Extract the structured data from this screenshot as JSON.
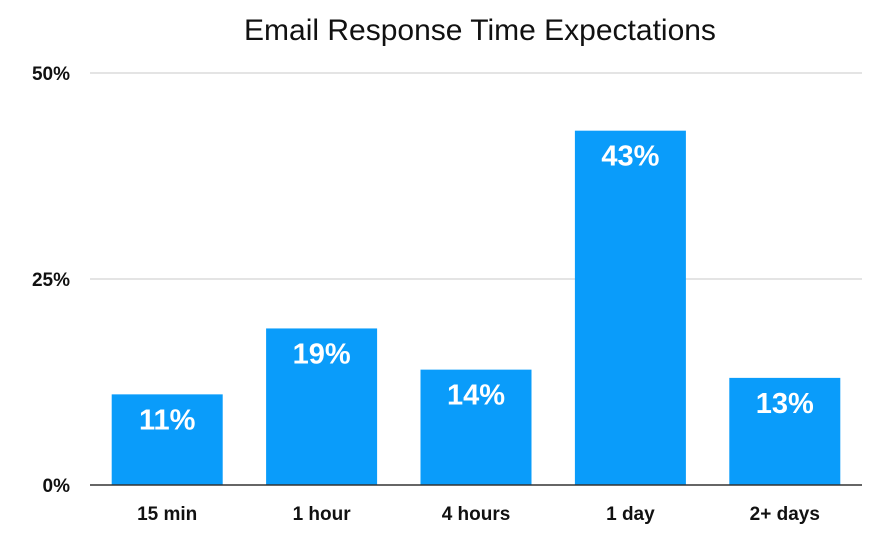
{
  "chart_data": {
    "type": "bar",
    "title": "Email Response Time Expectations",
    "xlabel": "",
    "ylabel": "",
    "categories": [
      "15 min",
      "1 hour",
      "4 hours",
      "1 day",
      "2+ days"
    ],
    "values": [
      11,
      19,
      14,
      43,
      13
    ],
    "value_labels": [
      "11%",
      "19%",
      "14%",
      "43%",
      "13%"
    ],
    "ylim": [
      0,
      50
    ],
    "y_ticks": [
      {
        "value": 0,
        "label": "0%"
      },
      {
        "value": 25,
        "label": "25%"
      },
      {
        "value": 50,
        "label": "50%"
      }
    ],
    "bar_color": "#0a9cfa",
    "grid": true,
    "legend": "none"
  }
}
